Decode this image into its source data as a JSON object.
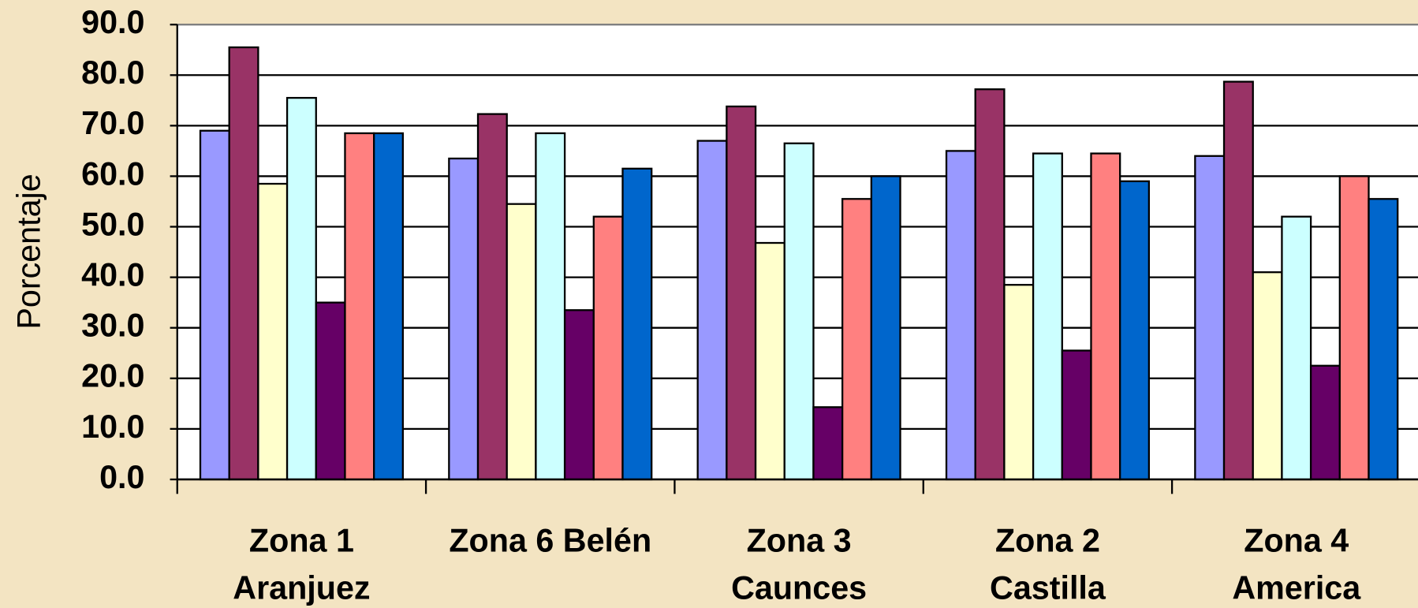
{
  "chart_data": {
    "type": "bar",
    "y_label": "Porcentaje",
    "categories": [
      "Zona 1\nAranjuez",
      "Zona 6 Belén",
      "Zona 3\nCaunces",
      "Zona 2\nCastilla",
      "Zona 4\nAmerica"
    ],
    "series": [
      {
        "color": "#9999ff",
        "values": [
          69.0,
          63.5,
          67.0,
          65.0,
          64.0
        ]
      },
      {
        "color": "#993366",
        "values": [
          85.5,
          72.3,
          73.8,
          77.2,
          78.7
        ]
      },
      {
        "color": "#ffffcc",
        "values": [
          58.5,
          54.5,
          46.8,
          38.5,
          41.0
        ]
      },
      {
        "color": "#ccffff",
        "values": [
          75.5,
          68.5,
          66.5,
          64.5,
          52.0
        ]
      },
      {
        "color": "#660066",
        "values": [
          35.0,
          33.5,
          14.3,
          25.5,
          22.5
        ]
      },
      {
        "color": "#ff8080",
        "values": [
          68.5,
          52.0,
          55.5,
          64.5,
          60.0
        ]
      },
      {
        "color": "#0066cc",
        "values": [
          68.5,
          61.5,
          60.0,
          59.0,
          55.5
        ]
      }
    ],
    "ylim": [
      0,
      90
    ],
    "yticks": [
      {
        "value": 0,
        "label": "0.0"
      },
      {
        "value": 10,
        "label": "10.0"
      },
      {
        "value": 20,
        "label": "20.0"
      },
      {
        "value": 30,
        "label": "30.0"
      },
      {
        "value": 40,
        "label": "40.0"
      },
      {
        "value": 50,
        "label": "50.0"
      },
      {
        "value": 60,
        "label": "60.0"
      },
      {
        "value": 70,
        "label": "70.0"
      },
      {
        "value": 80,
        "label": "80.0"
      },
      {
        "value": 90,
        "label": "90.0"
      }
    ],
    "grid": true
  }
}
